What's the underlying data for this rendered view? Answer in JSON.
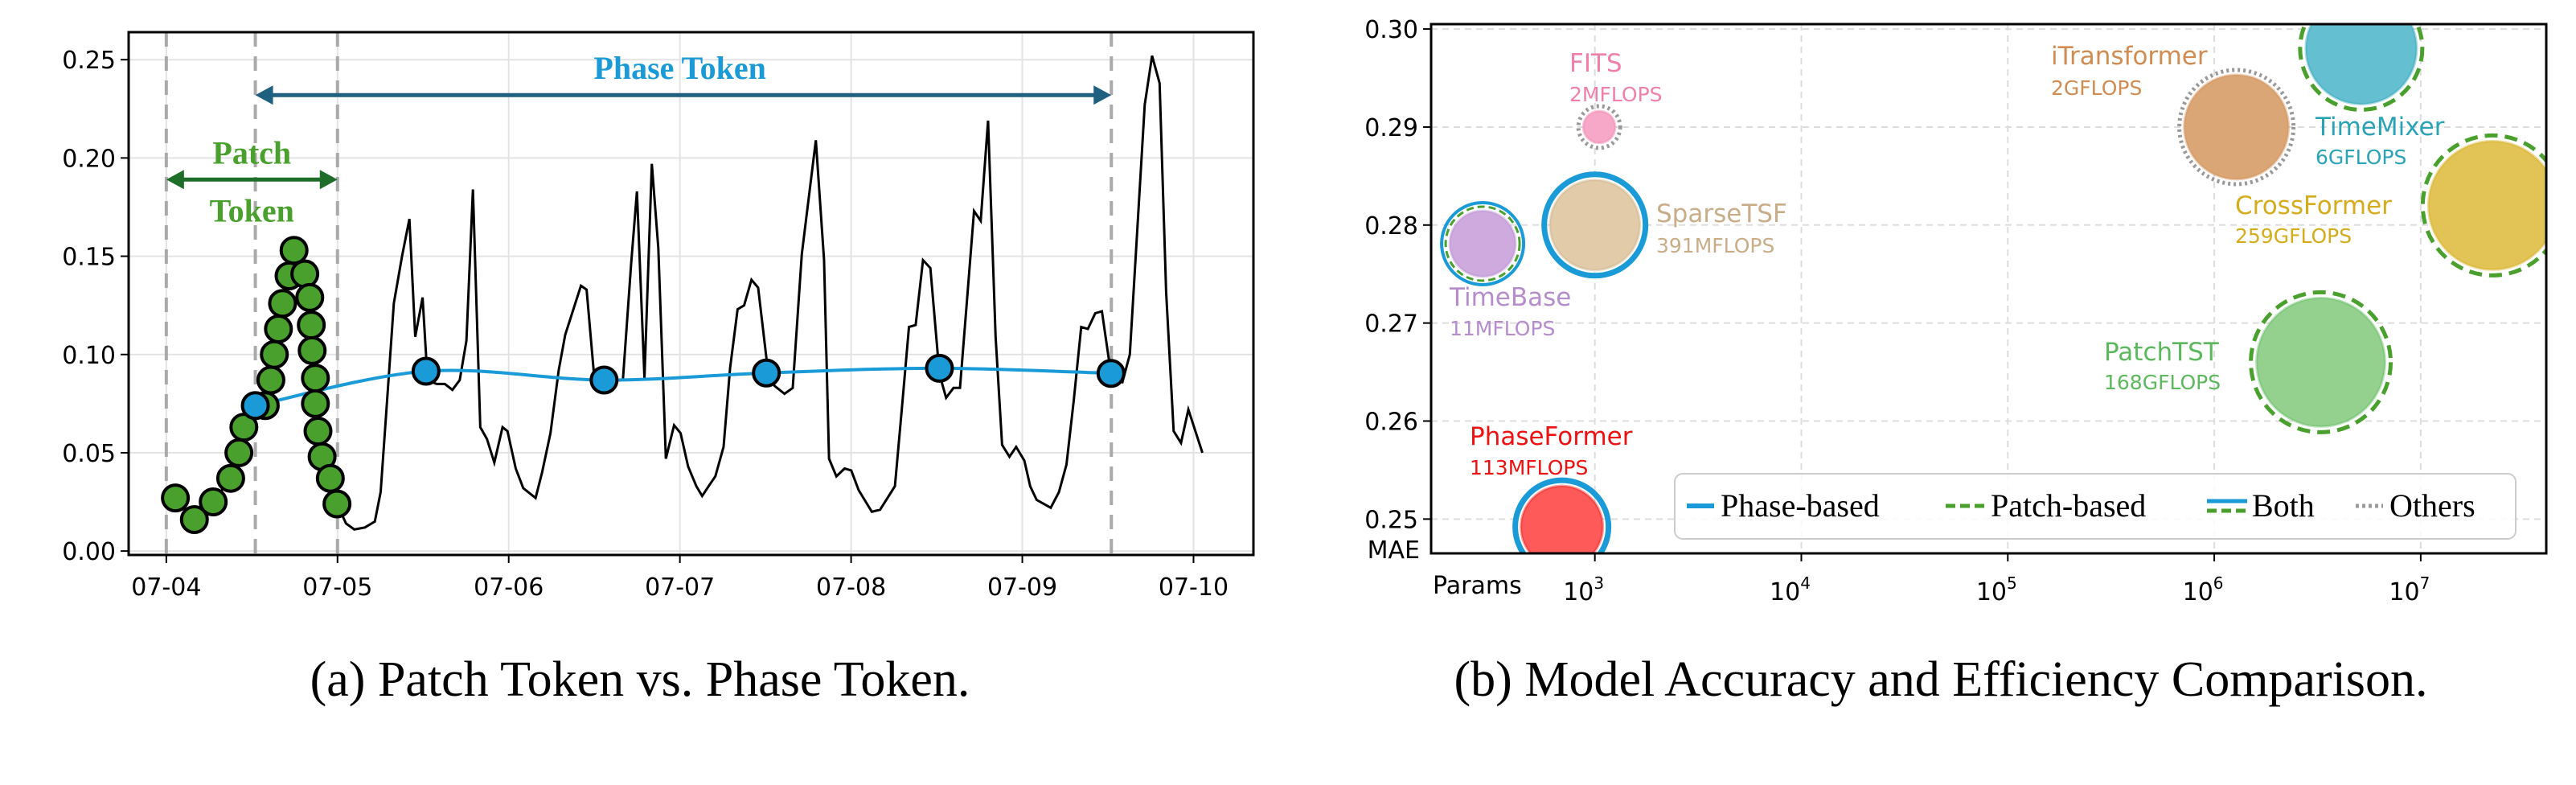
{
  "chart_data": [
    {
      "type": "line",
      "title": "",
      "caption": "(a) Patch Token vs. Phase Token.",
      "xlabel": "",
      "ylabel": "",
      "x_tick_labels": [
        "07-04",
        "07-05",
        "07-06",
        "07-07",
        "07-08",
        "07-09",
        "07-10"
      ],
      "x_unit": "days since 07-04",
      "xlim": [
        -0.22,
        6.35
      ],
      "y_ticks": [
        0.0,
        0.05,
        0.1,
        0.15,
        0.2,
        0.25
      ],
      "y_tick_labels": [
        "0.00",
        "0.05",
        "0.10",
        "0.15",
        "0.20",
        "0.25"
      ],
      "ylim": [
        -0.002,
        0.264
      ],
      "grid": true,
      "annotations": {
        "patch_label_1": "Patch",
        "patch_label_2": "Token",
        "patch_span": [
          0,
          1.0
        ],
        "patch_arrow_y": 0.189,
        "phase_label": "Phase Token",
        "phase_span": [
          0.52,
          5.52
        ],
        "phase_arrow_y": 0.232,
        "dashed_vlines": [
          0,
          0.52,
          1.0,
          5.52
        ]
      },
      "colors": {
        "series": "#000000",
        "patch": "#4aa02c",
        "phase": "#1a9bd7",
        "phase_arrow": "#1f5f7f",
        "patch_arrow": "#1e6e2a"
      },
      "series": [
        {
          "name": "patch_points",
          "points": [
            [
              0.053,
              0.027
            ],
            [
              0.164,
              0.016
            ],
            [
              0.274,
              0.025
            ],
            [
              0.376,
              0.037
            ],
            [
              0.424,
              0.05
            ],
            [
              0.453,
              0.063
            ],
            [
              0.578,
              0.074
            ],
            [
              0.611,
              0.087
            ],
            [
              0.631,
              0.1
            ],
            [
              0.655,
              0.113
            ],
            [
              0.679,
              0.126
            ],
            [
              0.717,
              0.14
            ],
            [
              0.746,
              0.153
            ],
            [
              0.809,
              0.141
            ],
            [
              0.838,
              0.129
            ],
            [
              0.847,
              0.115
            ],
            [
              0.852,
              0.102
            ],
            [
              0.871,
              0.088
            ],
            [
              0.871,
              0.075
            ],
            [
              0.886,
              0.061
            ],
            [
              0.91,
              0.048
            ],
            [
              0.958,
              0.037
            ],
            [
              0.997,
              0.024
            ]
          ]
        },
        {
          "name": "phase_points",
          "points": [
            [
              0.52,
              0.074
            ],
            [
              1.517,
              0.0915
            ],
            [
              2.557,
              0.087
            ],
            [
              3.505,
              0.0906
            ],
            [
              4.516,
              0.093
            ],
            [
              5.518,
              0.0904
            ]
          ]
        },
        {
          "name": "time_series",
          "points": [
            [
              1.05,
              0.014
            ],
            [
              1.098,
              0.011
            ],
            [
              1.16,
              0.012
            ],
            [
              1.218,
              0.015
            ],
            [
              1.252,
              0.03
            ],
            [
              1.29,
              0.077
            ],
            [
              1.329,
              0.126
            ],
            [
              1.377,
              0.15
            ],
            [
              1.42,
              0.169
            ],
            [
              1.454,
              0.109
            ],
            [
              1.497,
              0.129
            ],
            [
              1.526,
              0.087
            ],
            [
              1.579,
              0.085
            ],
            [
              1.627,
              0.085
            ],
            [
              1.671,
              0.082
            ],
            [
              1.714,
              0.087
            ],
            [
              1.753,
              0.107
            ],
            [
              1.791,
              0.184
            ],
            [
              1.834,
              0.063
            ],
            [
              1.873,
              0.057
            ],
            [
              1.916,
              0.045
            ],
            [
              1.964,
              0.063
            ],
            [
              1.993,
              0.061
            ],
            [
              2.041,
              0.042
            ],
            [
              2.085,
              0.032
            ],
            [
              2.157,
              0.027
            ],
            [
              2.195,
              0.04
            ],
            [
              2.244,
              0.06
            ],
            [
              2.292,
              0.092
            ],
            [
              2.33,
              0.11
            ],
            [
              2.422,
              0.135
            ],
            [
              2.455,
              0.133
            ],
            [
              2.499,
              0.089
            ],
            [
              2.557,
              0.086
            ],
            [
              2.667,
              0.087
            ],
            [
              2.715,
              0.146
            ],
            [
              2.749,
              0.183
            ],
            [
              2.793,
              0.088
            ],
            [
              2.836,
              0.197
            ],
            [
              2.874,
              0.154
            ],
            [
              2.918,
              0.047
            ],
            [
              2.966,
              0.064
            ],
            [
              3.004,
              0.06
            ],
            [
              3.048,
              0.043
            ],
            [
              3.096,
              0.033
            ],
            [
              3.13,
              0.028
            ],
            [
              3.168,
              0.033
            ],
            [
              3.207,
              0.038
            ],
            [
              3.255,
              0.053
            ],
            [
              3.293,
              0.093
            ],
            [
              3.337,
              0.123
            ],
            [
              3.375,
              0.125
            ],
            [
              3.418,
              0.138
            ],
            [
              3.457,
              0.134
            ],
            [
              3.515,
              0.091
            ],
            [
              3.553,
              0.084
            ],
            [
              3.611,
              0.08
            ],
            [
              3.659,
              0.083
            ],
            [
              3.712,
              0.151
            ],
            [
              3.794,
              0.209
            ],
            [
              3.842,
              0.148
            ],
            [
              3.871,
              0.047
            ],
            [
              3.914,
              0.038
            ],
            [
              3.962,
              0.042
            ],
            [
              4.001,
              0.041
            ],
            [
              4.044,
              0.031
            ],
            [
              4.121,
              0.02
            ],
            [
              4.169,
              0.021
            ],
            [
              4.256,
              0.033
            ],
            [
              4.299,
              0.075
            ],
            [
              4.338,
              0.114
            ],
            [
              4.377,
              0.115
            ],
            [
              4.42,
              0.148
            ],
            [
              4.463,
              0.144
            ],
            [
              4.516,
              0.09
            ],
            [
              4.555,
              0.078
            ],
            [
              4.598,
              0.083
            ],
            [
              4.636,
              0.083
            ],
            [
              4.68,
              0.131
            ],
            [
              4.718,
              0.173
            ],
            [
              4.757,
              0.168
            ],
            [
              4.8,
              0.219
            ],
            [
              4.844,
              0.109
            ],
            [
              4.882,
              0.054
            ],
            [
              4.925,
              0.048
            ],
            [
              4.964,
              0.053
            ],
            [
              5.012,
              0.046
            ],
            [
              5.046,
              0.033
            ],
            [
              5.084,
              0.026
            ],
            [
              5.166,
              0.022
            ],
            [
              5.214,
              0.03
            ],
            [
              5.258,
              0.044
            ],
            [
              5.301,
              0.077
            ],
            [
              5.344,
              0.114
            ],
            [
              5.383,
              0.113
            ],
            [
              5.426,
              0.121
            ],
            [
              5.465,
              0.122
            ],
            [
              5.518,
              0.09
            ],
            [
              5.585,
              0.086
            ],
            [
              5.628,
              0.1
            ],
            [
              5.672,
              0.164
            ],
            [
              5.715,
              0.227
            ],
            [
              5.758,
              0.252
            ],
            [
              5.802,
              0.238
            ],
            [
              5.84,
              0.132
            ],
            [
              5.884,
              0.061
            ],
            [
              5.927,
              0.055
            ],
            [
              5.97,
              0.072
            ],
            [
              6.052,
              0.05
            ]
          ]
        }
      ]
    },
    {
      "type": "scatter",
      "title": "",
      "caption": "(b) Model Accuracy and Efficiency Comparison.",
      "xlabel": "Params",
      "ylabel": "MAE",
      "xscale": "log",
      "xlim": [
        161,
        40550000
      ],
      "x_ticks": [
        1000,
        10000,
        100000,
        1000000,
        10000000
      ],
      "x_tick_labels": [
        {
          "base": "10",
          "exp": "3"
        },
        {
          "base": "10",
          "exp": "4"
        },
        {
          "base": "10",
          "exp": "5"
        },
        {
          "base": "10",
          "exp": "6"
        },
        {
          "base": "10",
          "exp": "7"
        }
      ],
      "ylim": [
        0.2465,
        0.3005
      ],
      "y_ticks": [
        0.25,
        0.26,
        0.27,
        0.28,
        0.29,
        0.3
      ],
      "y_tick_labels": [
        "0.25",
        "0.26",
        "0.27",
        "0.28",
        "0.29",
        "0.30"
      ],
      "grid": true,
      "legend": {
        "placement": "bottom-right",
        "entries": [
          {
            "label": "Phase-based",
            "style": "solid"
          },
          {
            "label": "Patch-based",
            "style": "dashed"
          },
          {
            "label": "Both",
            "style": "both"
          },
          {
            "label": "Others",
            "style": "dotted"
          }
        ]
      },
      "points": [
        {
          "name": "PhaseFormer",
          "flops": "113MFLOPS",
          "params": 692,
          "mae": 0.2492,
          "type": "Phase-based",
          "color": "#ff5a5a",
          "label_color": "#ee1111"
        },
        {
          "name": "TimeBase",
          "flops": "11MFLOPS",
          "params": 286,
          "mae": 0.2781,
          "type": "Both",
          "color": "#cfaadf",
          "label_color": "#b58ccc"
        },
        {
          "name": "SparseTSF",
          "flops": "391MFLOPS",
          "params": 1000,
          "mae": 0.28,
          "type": "Phase-based",
          "color": "#e2cba8",
          "label_color": "#c8ad88"
        },
        {
          "name": "FITS",
          "flops": "2MFLOPS",
          "params": 1050,
          "mae": 0.29,
          "type": "Others",
          "color": "#f7a8c8",
          "label_color": "#f080aa"
        },
        {
          "name": "iTransformer",
          "flops": "2GFLOPS",
          "params": 1280000,
          "mae": 0.29,
          "type": "Others",
          "color": "#dba676",
          "label_color": "#d08c52"
        },
        {
          "name": "TimeMixer",
          "flops": "6GFLOPS",
          "params": 5150000,
          "mae": 0.298,
          "type": "Patch-based",
          "color": "#64c0d0",
          "label_color": "#2ba3b7"
        },
        {
          "name": "CrossFormer",
          "flops": "259GFLOPS",
          "params": 22300000,
          "mae": 0.282,
          "type": "Patch-based",
          "color": "#e2c456",
          "label_color": "#d4ac1c"
        },
        {
          "name": "PatchTST",
          "flops": "168GFLOPS",
          "params": 3280000,
          "mae": 0.266,
          "type": "Patch-based",
          "color": "#94d08e",
          "label_color": "#5cb85c"
        }
      ],
      "colors": {
        "phase_ring": "#1a9bd7",
        "patch_ring": "#4aa02c",
        "other_ring": "#999999"
      }
    }
  ]
}
